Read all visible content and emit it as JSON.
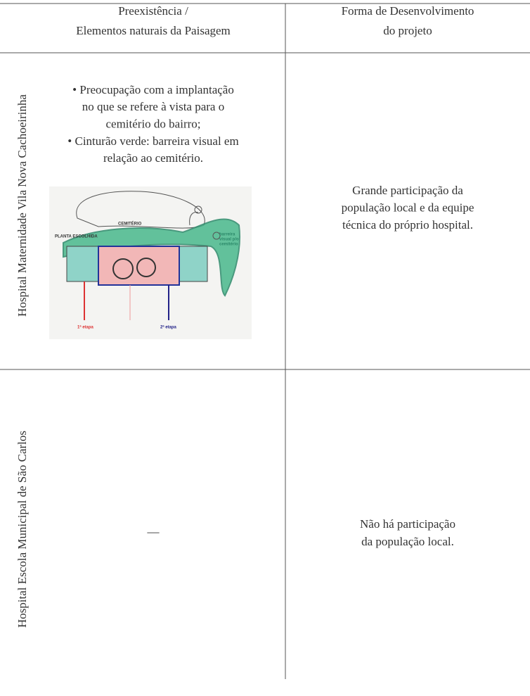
{
  "table": {
    "header": [
      [
        "Preexistência /",
        "Elementos naturais da Paisagem"
      ],
      [
        "Forma de Desenvolvimento",
        "do projeto"
      ]
    ],
    "rows": [
      {
        "label": "Hospital Maternidade Vila Nova Cachoeirinha",
        "preexistence": [
          "• Preocupação com a implantação",
          "no que se refere à vista para o",
          "cemitério do bairro;",
          "• Cinturão verde: barreira visual em",
          "relação ao cemitério."
        ],
        "sketch": {
          "labels": [
            "CEMITÉRIO",
            "PLANTA ESCOLHIDA",
            "barreira",
            "visual p/o",
            "cemitério",
            "1ª etapa",
            "2ª etapa"
          ]
        },
        "development": [
          "Grande participação da",
          "população local e da equipe",
          "técnica do próprio hospital."
        ]
      },
      {
        "label": "Hospital Escola Municipal de São Carlos",
        "preexistence": [
          "—"
        ],
        "development": [
          "Não há participação",
          "da população local."
        ]
      }
    ]
  }
}
